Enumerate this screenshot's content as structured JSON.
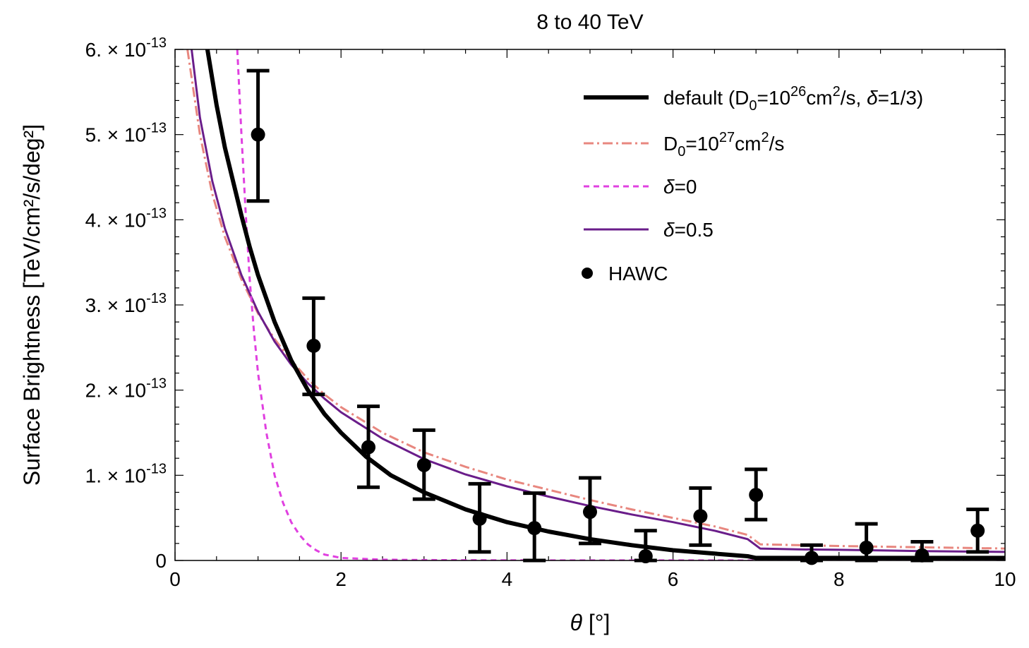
{
  "chart_data": {
    "type": "line",
    "title": "8 to 40 TeV",
    "xlabel": "θ [°]",
    "ylabel": "Surface Brightness [TeV/cm²/s/deg²]",
    "xlim": [
      0,
      10
    ],
    "ylim": [
      0,
      6e-13
    ],
    "x_ticks": [
      {
        "value": 0,
        "label": "0"
      },
      {
        "value": 2,
        "label": "2"
      },
      {
        "value": 4,
        "label": "4"
      },
      {
        "value": 6,
        "label": "6"
      },
      {
        "value": 8,
        "label": "8"
      },
      {
        "value": 10,
        "label": "10"
      }
    ],
    "y_ticks": [
      {
        "value": 0,
        "label": "0"
      },
      {
        "value": 1e-13,
        "mantissa": "1.",
        "exponent": "-13"
      },
      {
        "value": 2e-13,
        "mantissa": "2.",
        "exponent": "-13"
      },
      {
        "value": 3e-13,
        "mantissa": "3.",
        "exponent": "-13"
      },
      {
        "value": 4e-13,
        "mantissa": "4.",
        "exponent": "-13"
      },
      {
        "value": 5e-13,
        "mantissa": "5.",
        "exponent": "-13"
      },
      {
        "value": 6e-13,
        "mantissa": "6.",
        "exponent": "-13"
      }
    ],
    "legend_position": "top-right",
    "series": [
      {
        "name": "default",
        "legend": {
          "main": "default (D",
          "sub": "0",
          "mid": "=10",
          "sup": "26",
          "rest": "cm",
          "sup2": "2",
          "rest2": "/s, ",
          "greek": "δ",
          "end": "=1/3)"
        },
        "color": "#000000",
        "style": "solid-thick",
        "x": [
          0.39,
          0.5,
          0.6,
          0.7,
          0.8,
          0.9,
          1.0,
          1.2,
          1.4,
          1.6,
          1.8,
          2.0,
          2.3,
          2.6,
          3.0,
          3.5,
          4.0,
          4.5,
          5.0,
          5.5,
          6.0,
          6.5,
          6.9,
          7.0,
          7.5,
          8.0,
          9.0,
          10.0
        ],
        "y": [
          6e-13,
          5.35e-13,
          4.85e-13,
          4.45e-13,
          4.05e-13,
          3.68e-13,
          3.35e-13,
          2.8e-13,
          2.35e-13,
          2e-13,
          1.72e-13,
          1.5e-13,
          1.22e-13,
          1e-13,
          8e-14,
          6e-14,
          4.5e-14,
          3.4e-14,
          2.5e-14,
          1.8e-14,
          1.2e-14,
          8e-15,
          5e-15,
          3e-15,
          3e-15,
          3e-15,
          3e-15,
          3e-15
        ]
      },
      {
        "name": "D0=1e27",
        "legend": {
          "main": "D",
          "sub": "0",
          "mid": "=10",
          "sup": "27",
          "rest": "cm",
          "sup2": "2",
          "rest2": "/s"
        },
        "color": "#e8877f",
        "style": "dashdot",
        "x": [
          0.15,
          0.3,
          0.45,
          0.6,
          0.8,
          1.0,
          1.2,
          1.4,
          1.6,
          1.8,
          2.0,
          2.5,
          3.0,
          3.5,
          4.0,
          4.5,
          5.0,
          5.5,
          6.0,
          6.5,
          6.9,
          7.05,
          7.5,
          8.0,
          9.0,
          10.0
        ],
        "y": [
          6e-13,
          5e-13,
          4.3e-13,
          3.8e-13,
          3.3e-13,
          2.9e-13,
          2.6e-13,
          2.35e-13,
          2.13e-13,
          1.95e-13,
          1.8e-13,
          1.5e-13,
          1.27e-13,
          1.1e-13,
          9.5e-14,
          8.3e-14,
          7.1e-14,
          6e-14,
          5e-14,
          4e-14,
          3e-14,
          1.9e-14,
          1.8e-14,
          1.7e-14,
          1.55e-14,
          1.4e-14
        ]
      },
      {
        "name": "delta=0",
        "legend": {
          "greek": "δ",
          "end": "=0"
        },
        "color": "#e040e0",
        "style": "dashed",
        "x": [
          0.75,
          0.8,
          0.85,
          0.9,
          0.95,
          1.0,
          1.1,
          1.2,
          1.3,
          1.4,
          1.5,
          1.6,
          1.7,
          1.8,
          2.0,
          2.5,
          3.0,
          4.0,
          6.0,
          8.0,
          10.0
        ],
        "y": [
          6e-13,
          5e-13,
          4.1e-13,
          3.3e-13,
          2.7e-13,
          2.2e-13,
          1.5e-13,
          1e-13,
          6.8e-14,
          4.5e-14,
          3e-14,
          1.9e-14,
          1.2e-14,
          7e-15,
          3e-15,
          1e-15,
          5e-16,
          2e-16,
          1e-16,
          0.0,
          0.0
        ]
      },
      {
        "name": "delta=0.5",
        "legend": {
          "greek": "δ",
          "end": "=0.5"
        },
        "color": "#6a1d8a",
        "style": "solid",
        "x": [
          0.2,
          0.3,
          0.45,
          0.6,
          0.8,
          1.0,
          1.2,
          1.4,
          1.6,
          1.8,
          2.0,
          2.5,
          3.0,
          3.5,
          4.0,
          4.5,
          5.0,
          5.5,
          6.0,
          6.5,
          6.9,
          7.05,
          7.5,
          8.0,
          9.0,
          10.0
        ],
        "y": [
          6e-13,
          5.2e-13,
          4.45e-13,
          3.9e-13,
          3.35e-13,
          2.92e-13,
          2.57e-13,
          2.3e-13,
          2.08e-13,
          1.9e-13,
          1.74e-13,
          1.43e-13,
          1.19e-13,
          1.01e-13,
          8.7e-14,
          7.5e-14,
          6.4e-14,
          5.4e-14,
          4.5e-14,
          3.5e-14,
          2.5e-14,
          1.4e-14,
          1.3e-14,
          1.25e-14,
          1.1e-14,
          1e-14
        ]
      }
    ],
    "points": {
      "name": "HAWC",
      "legend": "HAWC",
      "color": "#000000",
      "x": [
        1.0,
        1.67,
        2.33,
        3.0,
        3.67,
        4.33,
        5.0,
        5.67,
        6.33,
        7.0,
        7.67,
        8.33,
        9.0,
        9.67
      ],
      "y": [
        5e-13,
        2.52e-13,
        1.33e-13,
        1.12e-13,
        4.9e-14,
        3.8e-14,
        5.7e-14,
        5e-15,
        5.2e-14,
        7.7e-14,
        3e-15,
        1.5e-14,
        6e-15,
        3.5e-14
      ],
      "y_low": [
        4.22e-13,
        1.95e-13,
        8.6e-14,
        7.2e-14,
        1e-14,
        0.0,
        2e-14,
        0.0,
        1.8e-14,
        4.8e-14,
        0.0,
        0.0,
        0.0,
        1e-14
      ],
      "y_high": [
        5.75e-13,
        3.08e-13,
        1.81e-13,
        1.53e-13,
        9e-14,
        7.9e-14,
        9.7e-14,
        3.5e-14,
        8.5e-14,
        1.07e-13,
        1.8e-14,
        4.3e-14,
        2.2e-14,
        6e-14
      ]
    }
  }
}
